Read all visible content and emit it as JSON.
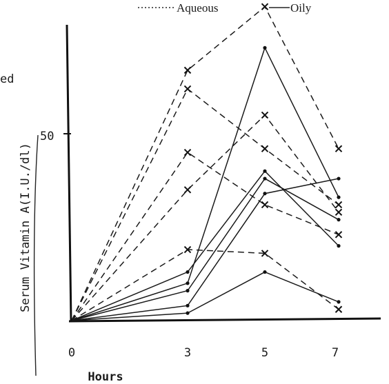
{
  "chart_data": {
    "type": "line",
    "title": "",
    "xlabel": "Hours",
    "ylabel": "Serum Vitamin A(I.U./dl)",
    "x_ticks": [
      "0",
      "3",
      "5",
      "7"
    ],
    "y_ticks": [
      "50"
    ],
    "xlim": [
      0,
      7.8
    ],
    "ylim": [
      0,
      80
    ],
    "partial_left_label": "ed",
    "legend": {
      "placement": "top",
      "entries": [
        {
          "label": "Aqueous",
          "style": "dotted"
        },
        {
          "label": "Oily",
          "style": "solid"
        }
      ]
    },
    "series": [
      {
        "style": "dashed",
        "marker": "x",
        "x": [
          0,
          3,
          5,
          7
        ],
        "y": [
          0,
          67,
          84,
          46
        ]
      },
      {
        "style": "dashed",
        "marker": "x",
        "x": [
          0,
          3,
          5,
          7
        ],
        "y": [
          0,
          62,
          46,
          31
        ]
      },
      {
        "style": "dashed",
        "marker": "x",
        "x": [
          0,
          3,
          5,
          7
        ],
        "y": [
          0,
          45,
          31,
          23
        ]
      },
      {
        "style": "dashed",
        "marker": "x",
        "x": [
          0,
          3,
          5,
          7
        ],
        "y": [
          0,
          35,
          55,
          29
        ]
      },
      {
        "style": "dashed",
        "marker": "x",
        "x": [
          0,
          3,
          5,
          7
        ],
        "y": [
          0,
          19,
          18,
          3
        ]
      },
      {
        "style": "solid",
        "marker": "dot",
        "x": [
          0,
          3,
          5,
          7
        ],
        "y": [
          0,
          10,
          73,
          33
        ]
      },
      {
        "style": "solid",
        "marker": "dot",
        "x": [
          0,
          3,
          5,
          7
        ],
        "y": [
          0,
          13,
          40,
          20
        ]
      },
      {
        "style": "solid",
        "marker": "dot",
        "x": [
          0,
          3,
          5,
          7
        ],
        "y": [
          0,
          8,
          38,
          27
        ]
      },
      {
        "style": "solid",
        "marker": "dot",
        "x": [
          0,
          3,
          5,
          7
        ],
        "y": [
          0,
          4,
          34,
          38
        ]
      },
      {
        "style": "solid",
        "marker": "dot",
        "x": [
          0,
          3,
          5,
          7
        ],
        "y": [
          0,
          2,
          13,
          5
        ]
      }
    ]
  }
}
